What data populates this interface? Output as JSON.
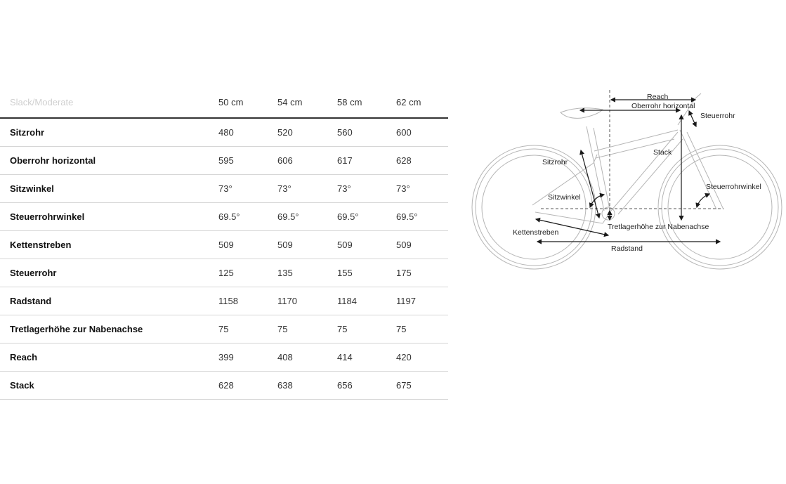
{
  "table": {
    "header": {
      "label": "Slack/Moderate",
      "sizes": [
        "50 cm",
        "54 cm",
        "58 cm",
        "62 cm"
      ]
    },
    "rows": [
      {
        "label": "Sitzrohr",
        "values": [
          "480",
          "520",
          "560",
          "600"
        ]
      },
      {
        "label": "Oberrohr horizontal",
        "values": [
          "595",
          "606",
          "617",
          "628"
        ]
      },
      {
        "label": "Sitzwinkel",
        "values": [
          "73°",
          "73°",
          "73°",
          "73°"
        ]
      },
      {
        "label": "Steuerrohrwinkel",
        "values": [
          "69.5°",
          "69.5°",
          "69.5°",
          "69.5°"
        ]
      },
      {
        "label": "Kettenstreben",
        "values": [
          "509",
          "509",
          "509",
          "509"
        ]
      },
      {
        "label": "Steuerrohr",
        "values": [
          "125",
          "135",
          "155",
          "175"
        ]
      },
      {
        "label": "Radstand",
        "values": [
          "1158",
          "1170",
          "1184",
          "1197"
        ]
      },
      {
        "label": "Tretlagerhöhe zur Nabenachse",
        "values": [
          "75",
          "75",
          "75",
          "75"
        ]
      },
      {
        "label": "Reach",
        "values": [
          "399",
          "408",
          "414",
          "420"
        ]
      },
      {
        "label": "Stack",
        "values": [
          "628",
          "638",
          "656",
          "675"
        ]
      }
    ]
  },
  "diagram": {
    "labels": {
      "reach": "Reach",
      "oberrohr": "Oberrohr horizontal",
      "steuerrohr": "Steuerrohr",
      "stack": "Stack",
      "sitzrohr": "Sitzrohr",
      "sitzwinkel": "Sitzwinkel",
      "steuerrohrwinkel": "Steuerrohrwinkel",
      "tretlager": "Tretlagerhöhe zur Nabenachse",
      "kettenstreben": "Kettenstreben",
      "radstand": "Radstand"
    },
    "colors": {
      "frame": "#b5b5b5",
      "arrows": "#1a1a1a"
    }
  }
}
